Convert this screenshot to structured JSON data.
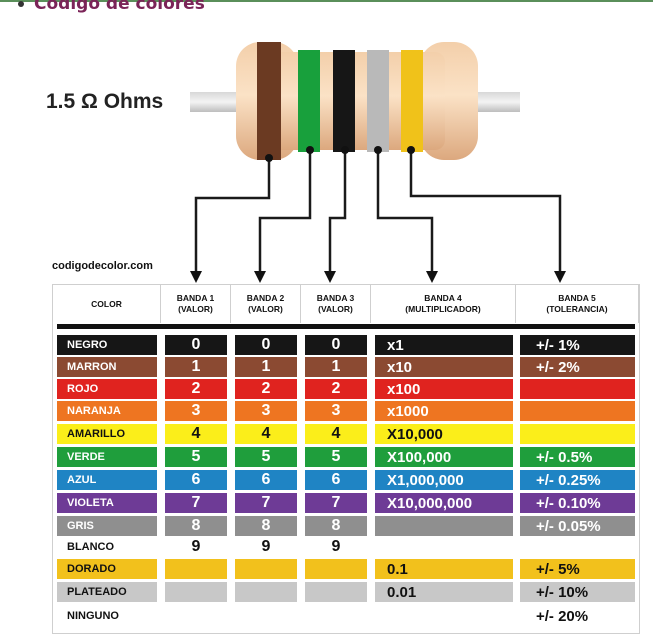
{
  "heading": "Código de colores",
  "resistance_label": "1.5 Ω Ohms",
  "source_label": "codigodecolor.com",
  "headers": [
    "COLOR",
    "BANDA 1\n(VALOR)",
    "BANDA 2\n(VALOR)",
    "BANDA 3\n(VALOR)",
    "BANDA 4\n(MULTIPLICADOR)",
    "BANDA 5\n(TOLERANCIA)"
  ],
  "resistor_bands": [
    "#6b3a22",
    "#18a03c",
    "#161616",
    "#b9b9b9",
    "#f0c21a"
  ],
  "rows": [
    {
      "name": "NEGRO",
      "d1": "0",
      "d2": "0",
      "d3": "0",
      "mult": "x1",
      "tol": "+/- 1%",
      "bg": "#161616",
      "fg": "#ffffff"
    },
    {
      "name": "MARRON",
      "d1": "1",
      "d2": "1",
      "d3": "1",
      "mult": "x10",
      "tol": "+/- 2%",
      "bg": "#8b4a32",
      "fg": "#ffffff"
    },
    {
      "name": "ROJO",
      "d1": "2",
      "d2": "2",
      "d3": "2",
      "mult": "x100",
      "tol": "",
      "bg": "#e0231f",
      "fg": "#ffffff"
    },
    {
      "name": "NARANJA",
      "d1": "3",
      "d2": "3",
      "d3": "3",
      "mult": "x1000",
      "tol": "",
      "bg": "#ee7521",
      "fg": "#ffffff"
    },
    {
      "name": "AMARILLO",
      "d1": "4",
      "d2": "4",
      "d3": "4",
      "mult": "X10,000",
      "tol": "",
      "bg": "#fbee1a",
      "fg": "#111111"
    },
    {
      "name": "VERDE",
      "d1": "5",
      "d2": "5",
      "d3": "5",
      "mult": "X100,000",
      "tol": "+/- 0.5%",
      "bg": "#1f9e3c",
      "fg": "#ffffff"
    },
    {
      "name": "AZUL",
      "d1": "6",
      "d2": "6",
      "d3": "6",
      "mult": "X1,000,000",
      "tol": "+/- 0.25%",
      "bg": "#1f84c4",
      "fg": "#ffffff"
    },
    {
      "name": "VIOLETA",
      "d1": "7",
      "d2": "7",
      "d3": "7",
      "mult": "X10,000,000",
      "tol": "+/- 0.10%",
      "bg": "#6e3b96",
      "fg": "#ffffff"
    },
    {
      "name": "GRIS",
      "d1": "8",
      "d2": "8",
      "d3": "8",
      "mult": "",
      "tol": "+/- 0.05%",
      "bg": "#8f8f8f",
      "fg": "#ffffff"
    },
    {
      "name": "BLANCO",
      "d1": "9",
      "d2": "9",
      "d3": "9",
      "mult": "",
      "tol": "",
      "bg": "#ffffff",
      "fg": "#111111"
    },
    {
      "name": "DORADO",
      "d1": "",
      "d2": "",
      "d3": "",
      "mult": "0.1",
      "tol": "+/- 5%",
      "bg": "#f2c11c",
      "fg": "#111111"
    },
    {
      "name": "PLATEADO",
      "d1": "",
      "d2": "",
      "d3": "",
      "mult": "0.01",
      "tol": "+/- 10%",
      "bg": "#c8c8c8",
      "fg": "#111111"
    },
    {
      "name": "NINGUNO",
      "d1": "",
      "d2": "",
      "d3": "",
      "mult": "",
      "tol": "+/- 20%",
      "bg": "#ffffff",
      "fg": "#111111"
    }
  ]
}
